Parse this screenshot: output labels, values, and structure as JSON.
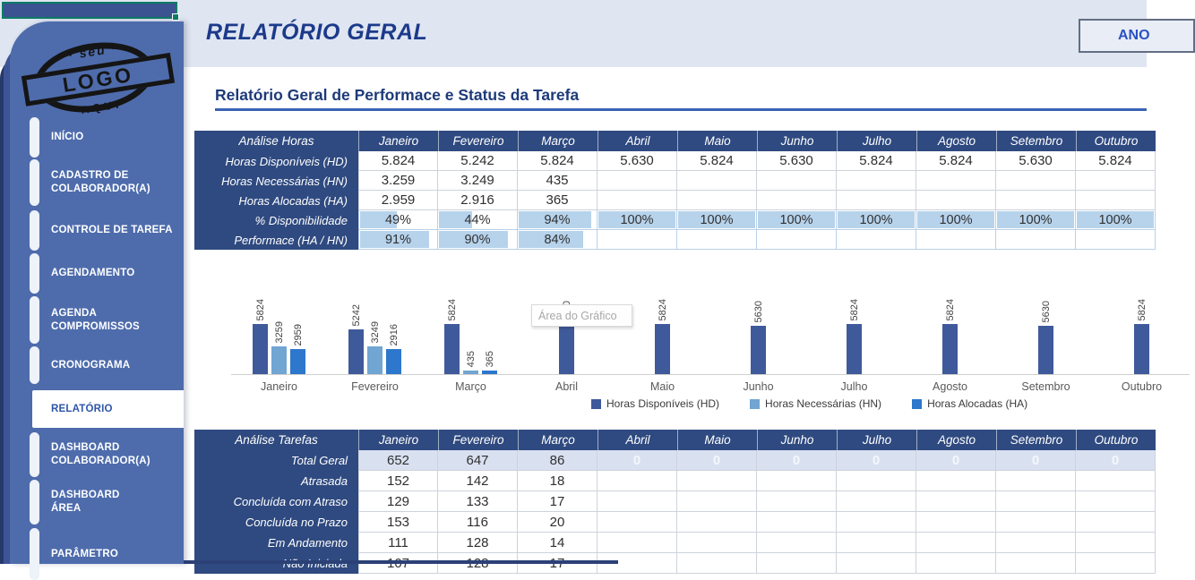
{
  "header": {
    "title": "RELATÓRIO GERAL",
    "year_button_label": "ANO",
    "section_title": "Relatório Geral de Performace e Status da Tarefa"
  },
  "logo": {
    "top": "· seu ·",
    "middle": "LOGO",
    "bottom": "AQUI"
  },
  "sidebar": {
    "items": [
      {
        "id": "inicio",
        "lines": [
          "INÍCIO"
        ],
        "active": false
      },
      {
        "id": "cadastro-de-colaborador",
        "lines": [
          "CADASTRO DE",
          "COLABORADOR(A)"
        ],
        "active": false
      },
      {
        "id": "controle-de-tarefa",
        "lines": [
          "CONTROLE DE TAREFA"
        ],
        "active": false
      },
      {
        "id": "agendamento",
        "lines": [
          "AGENDAMENTO"
        ],
        "active": false
      },
      {
        "id": "agenda-compromissos",
        "lines": [
          "AGENDA",
          "COMPROMISSOS"
        ],
        "active": false
      },
      {
        "id": "cronograma",
        "lines": [
          "CRONOGRAMA"
        ],
        "active": false
      },
      {
        "id": "relatorio",
        "lines": [
          "RELATÓRIO"
        ],
        "active": true
      },
      {
        "id": "dashboard-colaborador",
        "lines": [
          "DASHBOARD",
          "COLABORADOR(A)"
        ],
        "active": false
      },
      {
        "id": "dashboard-area",
        "lines": [
          "DASHBOARD",
          "ÁREA"
        ],
        "active": false
      },
      {
        "id": "parametro",
        "lines": [
          "PARÂMETRO"
        ],
        "active": false
      }
    ]
  },
  "months": [
    "Janeiro",
    "Fevereiro",
    "Março",
    "Abril",
    "Maio",
    "Junho",
    "Julho",
    "Agosto",
    "Setembro",
    "Outubro"
  ],
  "hours_table": {
    "corner_label": "Análise Horas",
    "rows": [
      {
        "label": "Horas Disponíveis (HD)",
        "type": "number",
        "values": [
          "5.824",
          "5.242",
          "5.824",
          "5.630",
          "5.824",
          "5.630",
          "5.824",
          "5.824",
          "5.630",
          "5.824"
        ]
      },
      {
        "label": "Horas Necessárias (HN)",
        "type": "number",
        "values": [
          "3.259",
          "3.249",
          "435",
          "",
          "",
          "",
          "",
          "",
          "",
          ""
        ]
      },
      {
        "label": "Horas Alocadas (HA)",
        "type": "number",
        "values": [
          "2.959",
          "2.916",
          "365",
          "",
          "",
          "",
          "",
          "",
          "",
          ""
        ]
      },
      {
        "label": "% Disponibilidade",
        "type": "databar",
        "values": [
          "49%",
          "44%",
          "94%",
          "100%",
          "100%",
          "100%",
          "100%",
          "100%",
          "100%",
          "100%"
        ],
        "fill_pct": [
          49,
          44,
          94,
          100,
          100,
          100,
          100,
          100,
          100,
          100
        ]
      },
      {
        "label": "Performace (HA / HN)",
        "type": "databar",
        "values": [
          "91%",
          "90%",
          "84%",
          "",
          "",
          "",
          "",
          "",
          "",
          ""
        ],
        "fill_pct": [
          91,
          90,
          84,
          0,
          0,
          0,
          0,
          0,
          0,
          0
        ]
      }
    ]
  },
  "chart_data": {
    "type": "bar",
    "title": "",
    "categories": [
      "Janeiro",
      "Fevereiro",
      "Março",
      "Abril",
      "Maio",
      "Junho",
      "Julho",
      "Agosto",
      "Setembro",
      "Outubro"
    ],
    "series": [
      {
        "name": "Horas Disponíveis (HD)",
        "color": "#3f5a9b",
        "values": [
          5824,
          5242,
          5824,
          5630,
          5824,
          5630,
          5824,
          5824,
          5630,
          5824
        ]
      },
      {
        "name": "Horas Necessárias (HN)",
        "color": "#71a5d2",
        "values": [
          3259,
          3249,
          435,
          null,
          null,
          null,
          null,
          null,
          null,
          null
        ]
      },
      {
        "name": "Horas Alocadas (HA)",
        "color": "#2d77cc",
        "values": [
          2959,
          2916,
          365,
          null,
          null,
          null,
          null,
          null,
          null,
          null
        ]
      }
    ],
    "data_labels": true,
    "legend_position": "bottom",
    "ylim": [
      0,
      6200
    ],
    "axes_hidden": true,
    "tooltip": "Área do Gráfico"
  },
  "tasks_table": {
    "corner_label": "Análise Tarefas",
    "rows": [
      {
        "label": "Total Geral",
        "highlight": true,
        "values": [
          "652",
          "647",
          "86",
          "0",
          "0",
          "0",
          "0",
          "0",
          "0",
          "0"
        ]
      },
      {
        "label": "Atrasada",
        "values": [
          "152",
          "142",
          "18",
          "",
          "",
          "",
          "",
          "",
          "",
          ""
        ]
      },
      {
        "label": "Concluída com Atraso",
        "values": [
          "129",
          "133",
          "17",
          "",
          "",
          "",
          "",
          "",
          "",
          ""
        ]
      },
      {
        "label": "Concluída no Prazo",
        "values": [
          "153",
          "116",
          "20",
          "",
          "",
          "",
          "",
          "",
          "",
          ""
        ]
      },
      {
        "label": "Em Andamento",
        "values": [
          "111",
          "128",
          "14",
          "",
          "",
          "",
          "",
          "",
          "",
          ""
        ]
      },
      {
        "label": "Não Iniciada",
        "values": [
          "107",
          "128",
          "17",
          "",
          "",
          "",
          "",
          "",
          "",
          ""
        ]
      }
    ]
  },
  "colors": {
    "band": "#dfe5f1",
    "navy_header": "#2f4a80",
    "sidebar_blue": "#4e6cac",
    "databar_fill": "#b7d3ec",
    "highlight_row": "#d9e1f1",
    "title_blue": "#1c3a8a",
    "selection_green": "#0e7c66"
  }
}
